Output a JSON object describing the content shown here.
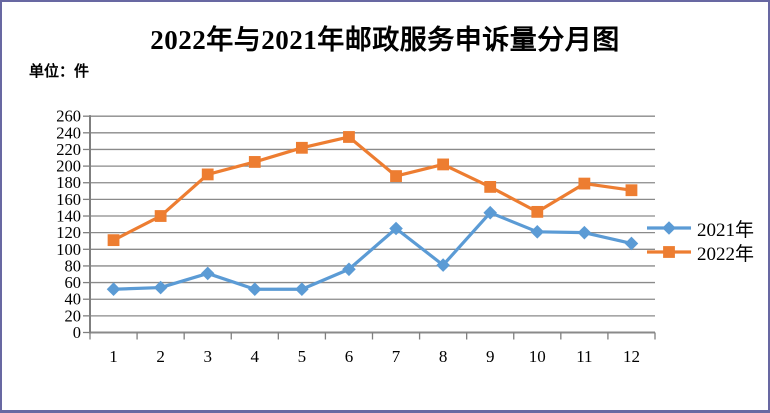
{
  "window": {
    "background": "#ffffff",
    "border_color": "#6868A2"
  },
  "header": {
    "title": "2022年与2021年邮政服务申诉量分月图",
    "unit_label": "单位：件"
  },
  "legend": {
    "entries": [
      "2021年",
      "2022年"
    ]
  },
  "chart_data": {
    "type": "line",
    "title": "2022年与2021年邮政服务申诉量分月图",
    "unit": "件",
    "categories": [
      "1",
      "2",
      "3",
      "4",
      "5",
      "6",
      "7",
      "8",
      "9",
      "10",
      "11",
      "12"
    ],
    "xlabel": "",
    "ylabel": "",
    "ylim": [
      0,
      260
    ],
    "ytick_step": 20,
    "grid": "horizontal-only",
    "legend_position": "right",
    "series": [
      {
        "name": "2021年",
        "color": "#5B9BD5",
        "marker": "diamond",
        "values": [
          52,
          54,
          71,
          52,
          52,
          76,
          125,
          81,
          144,
          121,
          120,
          107
        ]
      },
      {
        "name": "2022年",
        "color": "#ED7D31",
        "marker": "square",
        "values": [
          111,
          140,
          190,
          205,
          222,
          235,
          188,
          202,
          175,
          145,
          179,
          171
        ]
      }
    ],
    "colors": {
      "gridline": "#8A8A8A",
      "axis": "#7F7F7F",
      "tick_text": "#000000"
    }
  }
}
